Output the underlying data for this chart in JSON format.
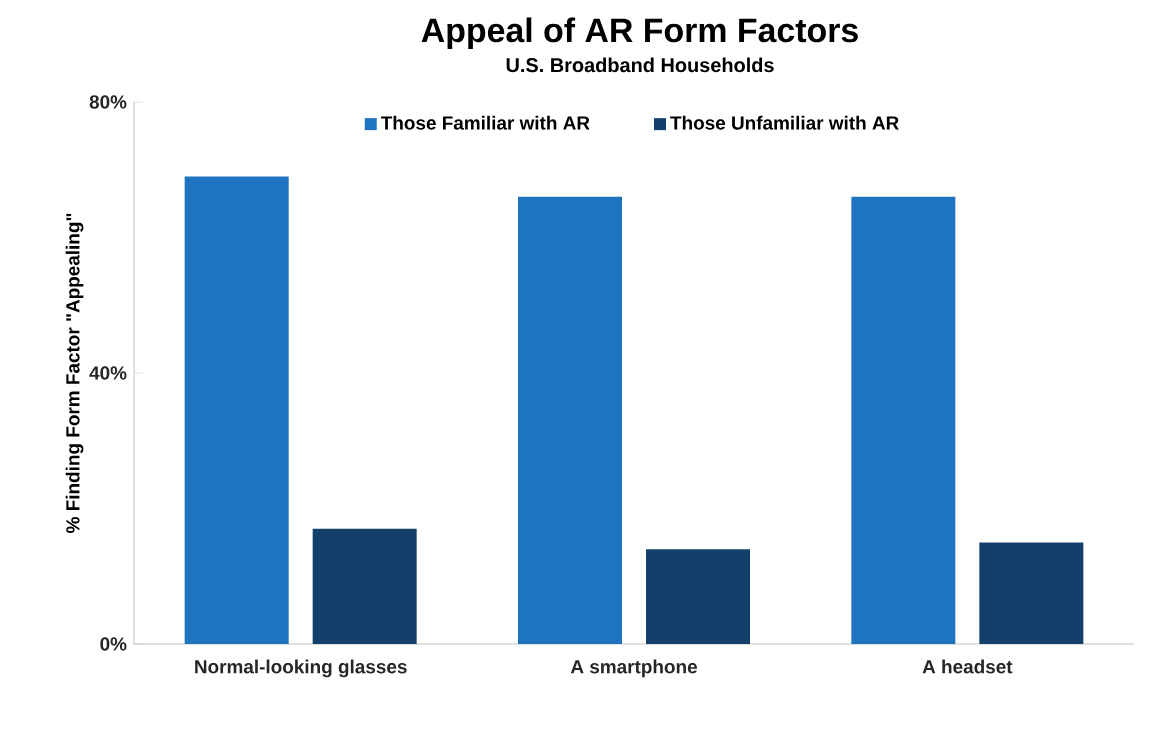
{
  "chart_data": {
    "type": "bar",
    "title": "Appeal of AR Form Factors",
    "subtitle": "U.S. Broadband Households",
    "ylabel": "% Finding Form Factor \"Appealing\"",
    "categories": [
      "Normal-looking glasses",
      "A smartphone",
      "A headset"
    ],
    "series": [
      {
        "name": "Those Familiar with AR",
        "color": "#1f74bf",
        "values": [
          69,
          66,
          66
        ]
      },
      {
        "name": "Those Unfamiliar with AR",
        "color": "#12406a",
        "values": [
          17,
          14,
          15
        ]
      }
    ],
    "ylim": [
      0,
      80
    ],
    "yticks": [
      {
        "value": 0,
        "label": "0%"
      },
      {
        "value": 40,
        "label": "40%"
      },
      {
        "value": 80,
        "label": "80%"
      }
    ],
    "legend": "top",
    "grid": false
  }
}
